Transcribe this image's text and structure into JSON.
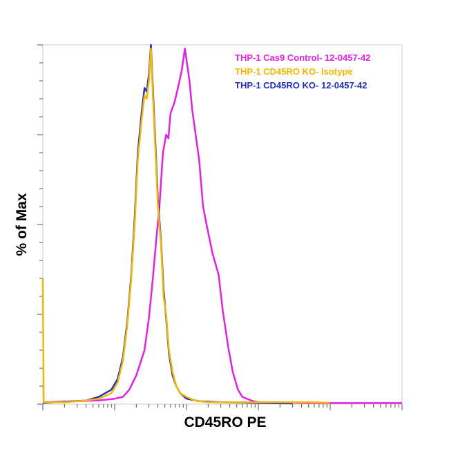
{
  "chart_data": {
    "type": "line",
    "title": "",
    "xlabel": "CD45RO PE",
    "ylabel": "% of Max",
    "x_scale": "log",
    "xlim": [
      10,
      1000000
    ],
    "ylim": [
      0,
      100
    ],
    "grid": false,
    "legend_position": "top-right",
    "series": [
      {
        "name": "THP-1 Cas9 Control- 12-0457-42",
        "color": "#e81ee8",
        "points": [
          [
            10,
            0.5
          ],
          [
            30,
            0.8
          ],
          [
            60,
            1.0
          ],
          [
            100,
            1.5
          ],
          [
            130,
            2
          ],
          [
            160,
            4
          ],
          [
            200,
            8
          ],
          [
            260,
            15
          ],
          [
            300,
            24
          ],
          [
            340,
            35
          ],
          [
            380,
            46
          ],
          [
            420,
            55
          ],
          [
            470,
            70
          ],
          [
            520,
            75
          ],
          [
            560,
            74
          ],
          [
            600,
            81
          ],
          [
            680,
            84
          ],
          [
            760,
            88
          ],
          [
            860,
            93
          ],
          [
            950,
            99
          ],
          [
            1100,
            90
          ],
          [
            1200,
            82
          ],
          [
            1500,
            68
          ],
          [
            1700,
            55
          ],
          [
            1900,
            50
          ],
          [
            2300,
            42
          ],
          [
            2800,
            36
          ],
          [
            3200,
            26
          ],
          [
            3800,
            16
          ],
          [
            4400,
            9
          ],
          [
            5200,
            4
          ],
          [
            6000,
            2
          ],
          [
            8000,
            1
          ],
          [
            10000,
            0.5
          ],
          [
            50000,
            0.3
          ],
          [
            1000000,
            0.3
          ]
        ]
      },
      {
        "name": "THP-1 CD45RO KO- Isotype",
        "color": "#f5b800",
        "points": [
          [
            10,
            35
          ],
          [
            10.3,
            0.5
          ],
          [
            20,
            0.5
          ],
          [
            40,
            1
          ],
          [
            60,
            1.5
          ],
          [
            90,
            3
          ],
          [
            110,
            6
          ],
          [
            130,
            12
          ],
          [
            150,
            22
          ],
          [
            170,
            35
          ],
          [
            190,
            50
          ],
          [
            210,
            68
          ],
          [
            240,
            80
          ],
          [
            260,
            86
          ],
          [
            280,
            85
          ],
          [
            300,
            90
          ],
          [
            320,
            99
          ],
          [
            340,
            86
          ],
          [
            370,
            70
          ],
          [
            400,
            55
          ],
          [
            440,
            45
          ],
          [
            480,
            30
          ],
          [
            520,
            25
          ],
          [
            570,
            15
          ],
          [
            640,
            9
          ],
          [
            720,
            5
          ],
          [
            820,
            3
          ],
          [
            1000,
            2
          ],
          [
            1300,
            1
          ],
          [
            2000,
            0.5
          ],
          [
            10000,
            0.5
          ],
          [
            50000,
            0.5
          ],
          [
            100000,
            0.4
          ]
        ]
      },
      {
        "name": "THP-1 CD45RO KO- 12-0457-42",
        "color": "#1f2fbf",
        "points": [
          [
            10,
            0.3
          ],
          [
            40,
            1
          ],
          [
            60,
            2
          ],
          [
            90,
            4
          ],
          [
            110,
            7
          ],
          [
            130,
            13
          ],
          [
            150,
            23
          ],
          [
            170,
            36
          ],
          [
            190,
            52
          ],
          [
            210,
            70
          ],
          [
            240,
            82
          ],
          [
            260,
            88
          ],
          [
            280,
            87
          ],
          [
            300,
            92
          ],
          [
            320,
            100
          ],
          [
            340,
            88
          ],
          [
            370,
            72
          ],
          [
            400,
            57
          ],
          [
            440,
            46
          ],
          [
            480,
            32
          ],
          [
            520,
            24
          ],
          [
            570,
            14
          ],
          [
            640,
            8
          ],
          [
            720,
            5
          ],
          [
            820,
            3
          ],
          [
            1000,
            1.5
          ],
          [
            1500,
            0.8
          ],
          [
            3000,
            0.5
          ],
          [
            10000,
            0.3
          ],
          [
            30000,
            0.2
          ]
        ]
      }
    ]
  }
}
